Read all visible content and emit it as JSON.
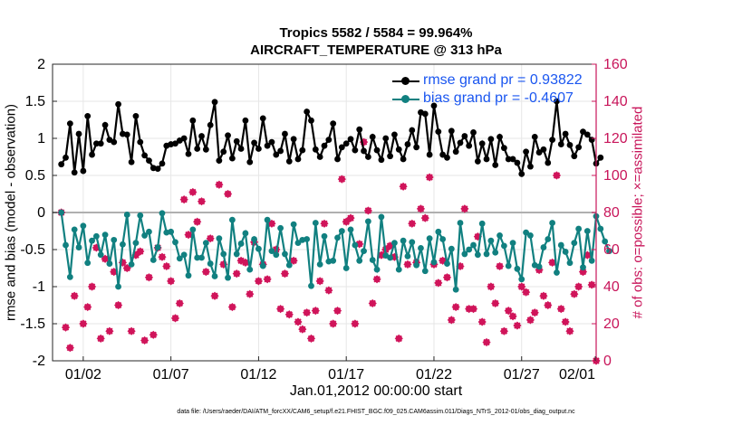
{
  "title_line1": "Tropics 5582 / 5584 = 99.964%",
  "title_line2": "AIRCRAFT_TEMPERATURE @ 313 hPa",
  "xlabel": "Jan.01,2012 00:00:00 start",
  "footer": "data file: /Users/raeder/DAI/ATM_forcXX/CAM6_setup/f.e21.FHIST_BGC.f09_025.CAM6assim.011/Diags_NTrS_2012-01/obs_diag_output.nc",
  "ylabel_left": "rmse and bias (model - observation)",
  "ylabel_right": "# of obs: o=possible; ×=assimilated",
  "legend": {
    "rmse": "rmse grand pr = 0.93822",
    "bias": "bias grand pr = -0.4607"
  },
  "colors": {
    "rmse": "#000000",
    "bias": "#118080",
    "obs": "#d0145a",
    "zero_line": "#b0b0b0",
    "right_axis": "#c8155a"
  },
  "chart_data": {
    "type": "line",
    "x_start": 0.75,
    "x_step": 0.25,
    "x_range": [
      0.25,
      31.25
    ],
    "xticks": [
      2,
      7,
      12,
      17,
      22,
      27,
      32
    ],
    "xtick_labels": [
      "01/02",
      "01/07",
      "01/12",
      "01/17",
      "01/22",
      "01/27",
      "02/01"
    ],
    "ylim_left": [
      -2,
      2
    ],
    "yticks_left": [
      -2,
      -1.5,
      -1,
      -0.5,
      0,
      0.5,
      1,
      1.5,
      2
    ],
    "ytick_labels_left": [
      "-2",
      "-1.5",
      "-1",
      "-0.5",
      "0",
      "0.5",
      "1",
      "1.5",
      "2"
    ],
    "ylim_right": [
      0,
      160
    ],
    "yticks_right": [
      0,
      20,
      40,
      60,
      80,
      100,
      120,
      140,
      160
    ],
    "ytick_labels_right": [
      "0",
      "20",
      "40",
      "60",
      "80",
      "100",
      "120",
      "140",
      "160"
    ],
    "grid": true,
    "series": [
      {
        "name": "rmse",
        "axis": "left",
        "values": [
          0.65,
          0.74,
          1.2,
          0.54,
          1.06,
          0.56,
          1.3,
          0.78,
          0.93,
          0.93,
          1.18,
          0.98,
          0.95,
          1.46,
          1.06,
          1.05,
          0.68,
          1.3,
          0.95,
          0.77,
          0.7,
          0.6,
          0.59,
          0.66,
          0.9,
          0.92,
          0.93,
          0.97,
          1.0,
          0.79,
          1.24,
          0.86,
          1.03,
          0.85,
          1.18,
          1.49,
          0.7,
          0.82,
          1.04,
          0.73,
          0.96,
          0.86,
          1.24,
          0.68,
          0.94,
          0.86,
          1.27,
          0.9,
          0.95,
          0.78,
          0.83,
          1.06,
          0.69,
          0.99,
          0.72,
          0.84,
          1.36,
          1.24,
          0.85,
          0.75,
          0.9,
          0.98,
          1.2,
          0.72,
          0.88,
          0.93,
          0.99,
          0.84,
          1.12,
          0.83,
          0.75,
          1.02,
          0.84,
          0.71,
          1.0,
          0.76,
          1.05,
          0.85,
          0.72,
          0.92,
          1.11,
          0.88,
          1.35,
          1.33,
          0.78,
          1.44,
          1.09,
          0.78,
          0.74,
          1.1,
          0.82,
          0.94,
          1.03,
          0.9,
          1.08,
          0.69,
          0.93,
          0.72,
          0.99,
          0.64,
          1.02,
          0.87,
          0.72,
          0.72,
          0.67,
          0.52,
          0.82,
          0.62,
          1.02,
          0.81,
          0.85,
          0.67,
          0.98,
          1.5,
          0.92,
          1.06,
          0.91,
          0.76,
          0.88,
          1.09,
          1.05,
          0.98,
          0.66,
          0.74
        ]
      },
      {
        "name": "bias",
        "axis": "left",
        "values": [
          0.0,
          -0.44,
          -0.87,
          -0.23,
          -0.47,
          -0.18,
          -0.68,
          -0.38,
          -0.32,
          -0.57,
          -0.3,
          -0.69,
          -0.37,
          -1.0,
          -0.43,
          -0.03,
          -0.7,
          -0.41,
          -0.04,
          -0.31,
          -0.26,
          -0.64,
          -0.47,
          -0.01,
          -0.27,
          -0.26,
          -0.4,
          -0.62,
          -0.57,
          -0.85,
          -0.23,
          -0.61,
          -0.61,
          -0.41,
          -0.69,
          -0.86,
          -0.35,
          -0.56,
          -0.88,
          -0.1,
          -0.56,
          -0.42,
          -0.28,
          -0.77,
          -0.36,
          -0.49,
          -0.72,
          -0.1,
          -0.52,
          -0.57,
          -0.21,
          -0.56,
          -0.71,
          -0.16,
          -0.41,
          -0.37,
          -0.36,
          -0.99,
          -0.14,
          -0.7,
          -0.32,
          -0.66,
          -0.65,
          -0.34,
          -0.25,
          -0.75,
          -0.23,
          -0.44,
          -0.65,
          -0.52,
          -0.12,
          -0.64,
          -0.77,
          -0.06,
          -0.58,
          -0.61,
          -0.41,
          -0.77,
          -0.38,
          -0.59,
          -0.4,
          -0.71,
          -0.48,
          -0.79,
          -0.35,
          -0.67,
          -0.26,
          -0.36,
          -0.69,
          -0.49,
          -1.04,
          -0.14,
          -0.56,
          -0.5,
          -0.44,
          -0.57,
          -0.15,
          -0.56,
          -0.38,
          -0.54,
          -0.31,
          -0.45,
          -0.72,
          -0.41,
          -0.76,
          -0.9,
          -0.27,
          -0.31,
          -0.71,
          -0.73,
          -0.47,
          -0.36,
          -0.14,
          -0.81,
          -0.44,
          -0.53,
          -0.68,
          -0.41,
          -0.22,
          -0.74,
          -0.25,
          -0.65,
          -0.05,
          -0.22,
          -0.39,
          -0.52
        ]
      },
      {
        "name": "obs_possible",
        "axis": "right",
        "points": [
          [
            0.75,
            80
          ],
          [
            1.0,
            18
          ],
          [
            1.25,
            7
          ],
          [
            1.5,
            35
          ],
          [
            2.0,
            20
          ],
          [
            2.25,
            29
          ],
          [
            2.5,
            40
          ],
          [
            2.75,
            61
          ],
          [
            3.0,
            12
          ],
          [
            3.25,
            55
          ],
          [
            3.5,
            16
          ],
          [
            3.75,
            48
          ],
          [
            4.0,
            30
          ],
          [
            4.25,
            53
          ],
          [
            4.5,
            50
          ],
          [
            4.75,
            16
          ],
          [
            5.0,
            57
          ],
          [
            5.25,
            59
          ],
          [
            5.5,
            11
          ],
          [
            5.75,
            45
          ],
          [
            6.0,
            14
          ],
          [
            6.25,
            61
          ],
          [
            6.5,
            56
          ],
          [
            6.75,
            51
          ],
          [
            7.0,
            43
          ],
          [
            7.25,
            23
          ],
          [
            7.5,
            31
          ],
          [
            7.75,
            87
          ],
          [
            8.0,
            68
          ],
          [
            8.25,
            91
          ],
          [
            8.5,
            75
          ],
          [
            8.75,
            86
          ],
          [
            9.0,
            48
          ],
          [
            9.25,
            66
          ],
          [
            9.5,
            35
          ],
          [
            9.75,
            95
          ],
          [
            10.0,
            52
          ],
          [
            10.25,
            90
          ],
          [
            10.5,
            29
          ],
          [
            10.75,
            47
          ],
          [
            11.0,
            54
          ],
          [
            11.25,
            53
          ],
          [
            11.5,
            36
          ],
          [
            11.75,
            64
          ],
          [
            12.0,
            43
          ],
          [
            12.25,
            52
          ],
          [
            12.5,
            44
          ],
          [
            12.75,
            74
          ],
          [
            13.0,
            60
          ],
          [
            13.25,
            28
          ],
          [
            13.5,
            47
          ],
          [
            13.75,
            25
          ],
          [
            14.0,
            54
          ],
          [
            14.25,
            21
          ],
          [
            14.5,
            17
          ],
          [
            14.75,
            26
          ],
          [
            15.0,
            12
          ],
          [
            15.25,
            27
          ],
          [
            15.5,
            43
          ],
          [
            15.75,
            74
          ],
          [
            16.0,
            38
          ],
          [
            16.25,
            20
          ],
          [
            16.5,
            27
          ],
          [
            16.75,
            98
          ],
          [
            17.0,
            75
          ],
          [
            17.25,
            77
          ],
          [
            17.5,
            20
          ],
          [
            17.75,
            63
          ],
          [
            18.0,
            118
          ],
          [
            18.25,
            81
          ],
          [
            18.5,
            31
          ],
          [
            18.75,
            44
          ],
          [
            19.0,
            57
          ],
          [
            19.25,
            60
          ],
          [
            19.5,
            62
          ],
          [
            19.75,
            56
          ],
          [
            20.0,
            12
          ],
          [
            20.25,
            94
          ],
          [
            20.5,
            52
          ],
          [
            20.75,
            74
          ],
          [
            21.0,
            53
          ],
          [
            21.25,
            82
          ],
          [
            21.5,
            77
          ],
          [
            21.75,
            99
          ],
          [
            22.0,
            52
          ],
          [
            22.25,
            42
          ],
          [
            22.5,
            54
          ],
          [
            22.75,
            45
          ],
          [
            23.0,
            22
          ],
          [
            23.25,
            29
          ],
          [
            23.5,
            51
          ],
          [
            23.75,
            82
          ],
          [
            24.0,
            28
          ],
          [
            24.25,
            28
          ],
          [
            24.5,
            67
          ],
          [
            24.75,
            21
          ],
          [
            25.0,
            10
          ],
          [
            25.25,
            40
          ],
          [
            25.5,
            31
          ],
          [
            25.75,
            51
          ],
          [
            26.0,
            16
          ],
          [
            26.25,
            27
          ],
          [
            26.5,
            24
          ],
          [
            26.75,
            19
          ],
          [
            27.0,
            40
          ],
          [
            27.25,
            37
          ],
          [
            27.5,
            22
          ],
          [
            27.75,
            26
          ],
          [
            28.0,
            49
          ],
          [
            28.25,
            35
          ],
          [
            28.5,
            30
          ],
          [
            28.75,
            53
          ],
          [
            29.0,
            100
          ],
          [
            29.25,
            28
          ],
          [
            29.5,
            21
          ],
          [
            29.75,
            16
          ],
          [
            30.0,
            36
          ],
          [
            30.25,
            40
          ],
          [
            30.5,
            48
          ],
          [
            30.75,
            57
          ],
          [
            31.0,
            41
          ],
          [
            31.25,
            0
          ]
        ]
      }
    ]
  }
}
